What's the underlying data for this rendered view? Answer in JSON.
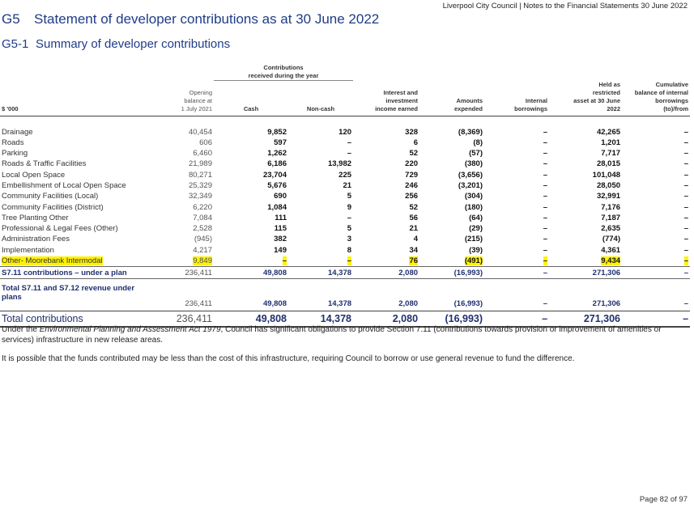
{
  "running_header": "Liverpool City Council | Notes to the Financial Statements 30 June 2022",
  "section": {
    "number": "G5",
    "title": "Statement of developer contributions as at 30 June 2022"
  },
  "subsection": {
    "number": "G5-1",
    "title": "Summary of developer contributions"
  },
  "table": {
    "unit_label": "$ '000",
    "group_header": "Contributions\nreceived during the year",
    "columns": {
      "opening": "Opening\nbalance at\n1 July 2021",
      "cash": "Cash",
      "noncash": "Non-cash",
      "interest": "Interest and\ninvestment\nincome earned",
      "expended": "Amounts\nexpended",
      "internal": "Internal\nborrowings",
      "held": "Held as\nrestricted\nasset at 30 June\n2022",
      "cumulative": "Cumulative\nbalance of internal\nborrowings\n(to)/from"
    },
    "rows": [
      {
        "label": "Drainage",
        "opening": "40,454",
        "cash": "9,852",
        "noncash": "120",
        "interest": "328",
        "expended": "(8,369)",
        "internal": "–",
        "held": "42,265",
        "cumulative": "–"
      },
      {
        "label": "Roads",
        "opening": "606",
        "cash": "597",
        "noncash": "–",
        "interest": "6",
        "expended": "(8)",
        "internal": "–",
        "held": "1,201",
        "cumulative": "–"
      },
      {
        "label": "Parking",
        "opening": "6,460",
        "cash": "1,262",
        "noncash": "–",
        "interest": "52",
        "expended": "(57)",
        "internal": "–",
        "held": "7,717",
        "cumulative": "–"
      },
      {
        "label": "Roads & Traffic Facilities",
        "opening": "21,989",
        "cash": "6,186",
        "noncash": "13,982",
        "interest": "220",
        "expended": "(380)",
        "internal": "–",
        "held": "28,015",
        "cumulative": "–"
      },
      {
        "label": "Local Open Space",
        "opening": "80,271",
        "cash": "23,704",
        "noncash": "225",
        "interest": "729",
        "expended": "(3,656)",
        "internal": "–",
        "held": "101,048",
        "cumulative": "–"
      },
      {
        "label": "Embellishment of Local Open Space",
        "opening": "25,329",
        "cash": "5,676",
        "noncash": "21",
        "interest": "246",
        "expended": "(3,201)",
        "internal": "–",
        "held": "28,050",
        "cumulative": "–"
      },
      {
        "label": "Community Facilities (Local)",
        "opening": "32,349",
        "cash": "690",
        "noncash": "5",
        "interest": "256",
        "expended": "(304)",
        "internal": "–",
        "held": "32,991",
        "cumulative": "–"
      },
      {
        "label": "Community Facilities (District)",
        "opening": "6,220",
        "cash": "1,084",
        "noncash": "9",
        "interest": "52",
        "expended": "(180)",
        "internal": "–",
        "held": "7,176",
        "cumulative": "–"
      },
      {
        "label": "Tree Planting Other",
        "opening": "7,084",
        "cash": "111",
        "noncash": "–",
        "interest": "56",
        "expended": "(64)",
        "internal": "–",
        "held": "7,187",
        "cumulative": "–"
      },
      {
        "label": "Professional & Legal Fees (Other)",
        "opening": "2,528",
        "cash": "115",
        "noncash": "5",
        "interest": "21",
        "expended": "(29)",
        "internal": "–",
        "held": "2,635",
        "cumulative": "–"
      },
      {
        "label": "Administration Fees",
        "opening": "(945)",
        "cash": "382",
        "noncash": "3",
        "interest": "4",
        "expended": "(215)",
        "internal": "–",
        "held": "(774)",
        "cumulative": "–"
      },
      {
        "label": "Implementation",
        "opening": "4,217",
        "cash": "149",
        "noncash": "8",
        "interest": "34",
        "expended": "(39)",
        "internal": "–",
        "held": "4,361",
        "cumulative": "–"
      },
      {
        "label": "Other- Moorebank Intermodal",
        "opening": "9,849",
        "cash": "–",
        "noncash": "–",
        "interest": "76",
        "expended": "(491)",
        "internal": "–",
        "held": "9,434",
        "cumulative": "–"
      }
    ],
    "subtotal": {
      "label": "S7.11 contributions – under a plan",
      "opening": "236,411",
      "cash": "49,808",
      "noncash": "14,378",
      "interest": "2,080",
      "expended": "(16,993)",
      "internal": "–",
      "held": "271,306",
      "cumulative": "–"
    },
    "revenue": {
      "label": "Total S7.11 and S7.12 revenue under\nplans",
      "opening": "236,411",
      "cash": "49,808",
      "noncash": "14,378",
      "interest": "2,080",
      "expended": "(16,993)",
      "internal": "–",
      "held": "271,306",
      "cumulative": "–"
    },
    "total": {
      "label": "Total contributions",
      "opening": "236,411",
      "cash": "49,808",
      "noncash": "14,378",
      "interest": "2,080",
      "expended": "(16,993)",
      "internal": "–",
      "held": "271,306",
      "cumulative": "–"
    }
  },
  "notes": {
    "p1_before": "Under the ",
    "p1_italic": "Environmental Planning and Assessment Act 1979",
    "p1_after": ", Council has significant obligations to provide Section 7.11 (contributions towards provision or improvement of amenities or services) infrastructure in new release areas.",
    "p2": "It is possible that the funds contributed may be less than the cost of this infrastructure, requiring Council to borrow or use general revenue to fund the difference."
  },
  "page_number": "Page 82 of 97",
  "colors": {
    "heading": "#1f3c88",
    "highlight": "#fff200",
    "totals": "#1f2f6e"
  }
}
